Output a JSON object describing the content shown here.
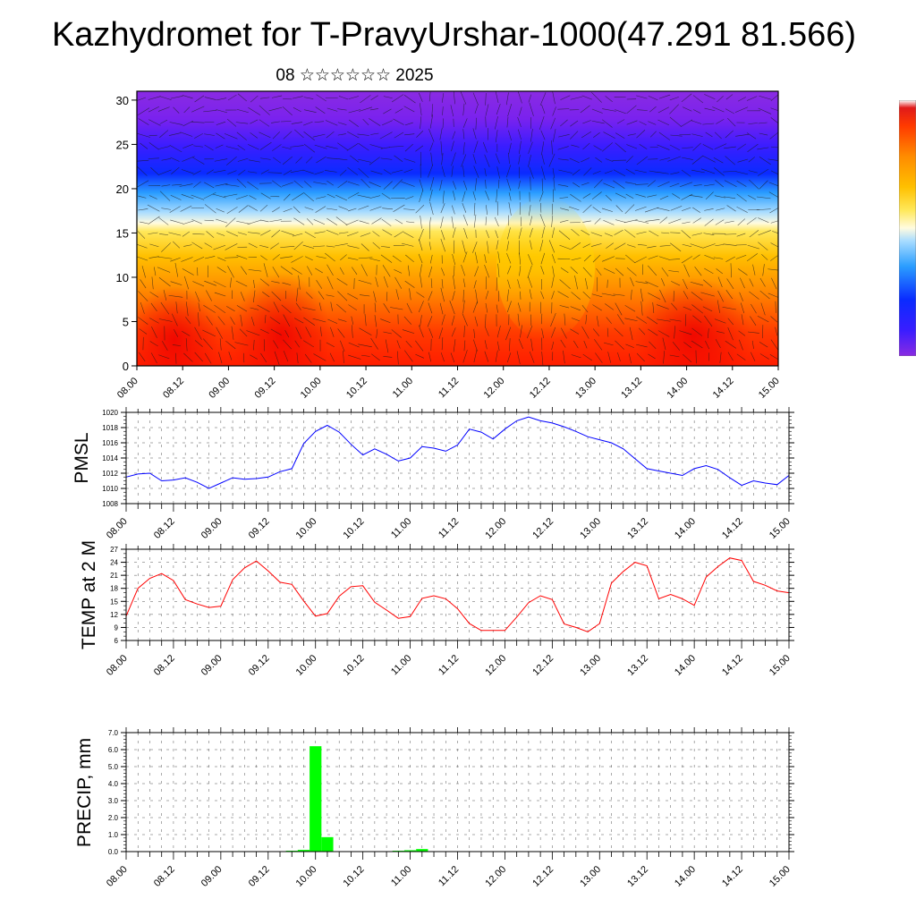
{
  "title": "Kazhydromet for T-PravyUrshar-1000(47.291 81.566)",
  "subtitle": "08 ☆☆☆☆☆☆ 2025",
  "time_labels": [
    "08.00",
    "08.12",
    "09.00",
    "09.12",
    "10.00",
    "10.12",
    "11.00",
    "11.12",
    "12.00",
    "12.12",
    "13.00",
    "13.12",
    "14.00",
    "14.12",
    "15.00"
  ],
  "colors": {
    "pmsl_line": "#0000ff",
    "temp_line": "#ff0000",
    "precip_bar": "#00ff00"
  },
  "chart_data": [
    {
      "type": "heatmap",
      "name": "cross-section",
      "title": "08 ☆☆☆☆☆☆ 2025",
      "x_ticks": [
        "08.00",
        "08.12",
        "09.00",
        "09.12",
        "10.00",
        "10.12",
        "11.00",
        "11.12",
        "12.00",
        "12.12",
        "13.00",
        "13.12",
        "14.00",
        "14.12",
        "15.00"
      ],
      "y_ticks": [
        0,
        5,
        10,
        15,
        20,
        25,
        30
      ],
      "ylim": [
        0,
        31
      ],
      "colormap": "rainbow: red (bottom) → orange → yellow → light blue → blue → violet (top)",
      "overlay": "wind vectors",
      "colorbar": "right"
    },
    {
      "type": "line",
      "name": "pmsl",
      "ylabel": "PMSL",
      "ylim": [
        1008,
        1020
      ],
      "y_ticks": [
        1008,
        1010,
        1012,
        1014,
        1016,
        1018,
        1020
      ],
      "x_ticks": [
        "08.00",
        "08.12",
        "09.00",
        "09.12",
        "10.00",
        "10.12",
        "11.00",
        "11.12",
        "12.00",
        "12.12",
        "13.00",
        "13.12",
        "14.00",
        "14.12",
        "15.00"
      ],
      "grid": true,
      "x_hours": [
        0,
        3,
        6,
        9,
        12,
        15,
        18,
        21,
        24,
        27,
        30,
        33,
        36,
        39,
        42,
        45,
        48,
        51,
        54,
        57,
        60,
        63,
        66,
        69,
        72,
        75,
        78,
        81,
        84,
        87,
        90,
        93,
        96,
        99,
        102,
        105,
        108,
        111,
        114,
        117,
        120,
        123,
        126,
        129,
        132,
        135,
        138,
        141,
        144,
        147,
        150,
        153,
        156,
        159,
        162,
        165,
        168
      ],
      "values": [
        1011.5,
        1011.9,
        1012.0,
        1011.0,
        1011.1,
        1011.4,
        1010.8,
        1010.0,
        1010.7,
        1011.4,
        1011.2,
        1011.3,
        1011.5,
        1012.2,
        1012.6,
        1015.9,
        1017.5,
        1018.3,
        1017.4,
        1015.8,
        1014.4,
        1015.2,
        1014.5,
        1013.6,
        1014.0,
        1015.5,
        1015.3,
        1014.9,
        1015.7,
        1017.8,
        1017.4,
        1016.5,
        1017.8,
        1018.9,
        1019.4,
        1018.9,
        1018.6,
        1018.1,
        1017.5,
        1016.8,
        1016.4,
        1016.0,
        1015.2,
        1013.9,
        1012.6,
        1012.3,
        1012.0,
        1011.7,
        1012.6,
        1013.0,
        1012.5,
        1011.4,
        1010.4,
        1011.0,
        1010.7,
        1010.5,
        1011.7
      ]
    },
    {
      "type": "line",
      "name": "temp2m",
      "ylabel": "TEMP at 2 M",
      "ylim": [
        6,
        27
      ],
      "y_ticks": [
        6,
        9,
        12,
        15,
        18,
        21,
        24,
        27
      ],
      "x_ticks": [
        "08.00",
        "08.12",
        "09.00",
        "09.12",
        "10.00",
        "10.12",
        "11.00",
        "11.12",
        "12.00",
        "12.12",
        "13.00",
        "13.12",
        "14.00",
        "14.12",
        "15.00"
      ],
      "grid": true,
      "x_hours": [
        0,
        3,
        6,
        9,
        12,
        15,
        18,
        21,
        24,
        27,
        30,
        33,
        36,
        39,
        42,
        45,
        48,
        51,
        54,
        57,
        60,
        63,
        66,
        69,
        72,
        75,
        78,
        81,
        84,
        87,
        90,
        93,
        96,
        99,
        102,
        105,
        108,
        111,
        114,
        117,
        120,
        123,
        126,
        129,
        132,
        135,
        138,
        141,
        144,
        147,
        150,
        153,
        156,
        159,
        162,
        165,
        168
      ],
      "values": [
        11.6,
        18.0,
        20.3,
        21.4,
        19.8,
        15.4,
        14.4,
        13.6,
        13.9,
        20.0,
        22.7,
        24.3,
        22.0,
        19.4,
        18.9,
        15.1,
        11.6,
        12.2,
        16.2,
        18.4,
        18.6,
        14.8,
        13.0,
        11.1,
        11.5,
        15.7,
        16.3,
        15.6,
        13.3,
        9.9,
        8.3,
        8.3,
        8.3,
        11.4,
        14.7,
        16.3,
        15.4,
        9.8,
        9.0,
        8.0,
        9.9,
        19.2,
        21.9,
        24.0,
        23.2,
        15.6,
        16.6,
        15.6,
        14.1,
        20.6,
        23.0,
        25.0,
        24.4,
        19.6,
        18.7,
        17.4,
        17.0
      ]
    },
    {
      "type": "bar",
      "name": "precip",
      "ylabel": "PRECIP, mm",
      "ylim": [
        0,
        7
      ],
      "y_ticks": [
        "0.0",
        "1.0",
        "2.0",
        "3.0",
        "4.0",
        "5.0",
        "6.0",
        "7.0"
      ],
      "x_ticks": [
        "08.00",
        "08.12",
        "09.00",
        "09.12",
        "10.00",
        "10.12",
        "11.00",
        "11.12",
        "12.00",
        "12.12",
        "13.00",
        "13.12",
        "14.00",
        "14.12",
        "15.00"
      ],
      "grid": true,
      "x_hours": [
        42,
        45,
        48,
        51,
        69,
        72,
        75
      ],
      "values": [
        0.05,
        0.1,
        6.2,
        0.85,
        0.05,
        0.08,
        0.15
      ]
    }
  ]
}
